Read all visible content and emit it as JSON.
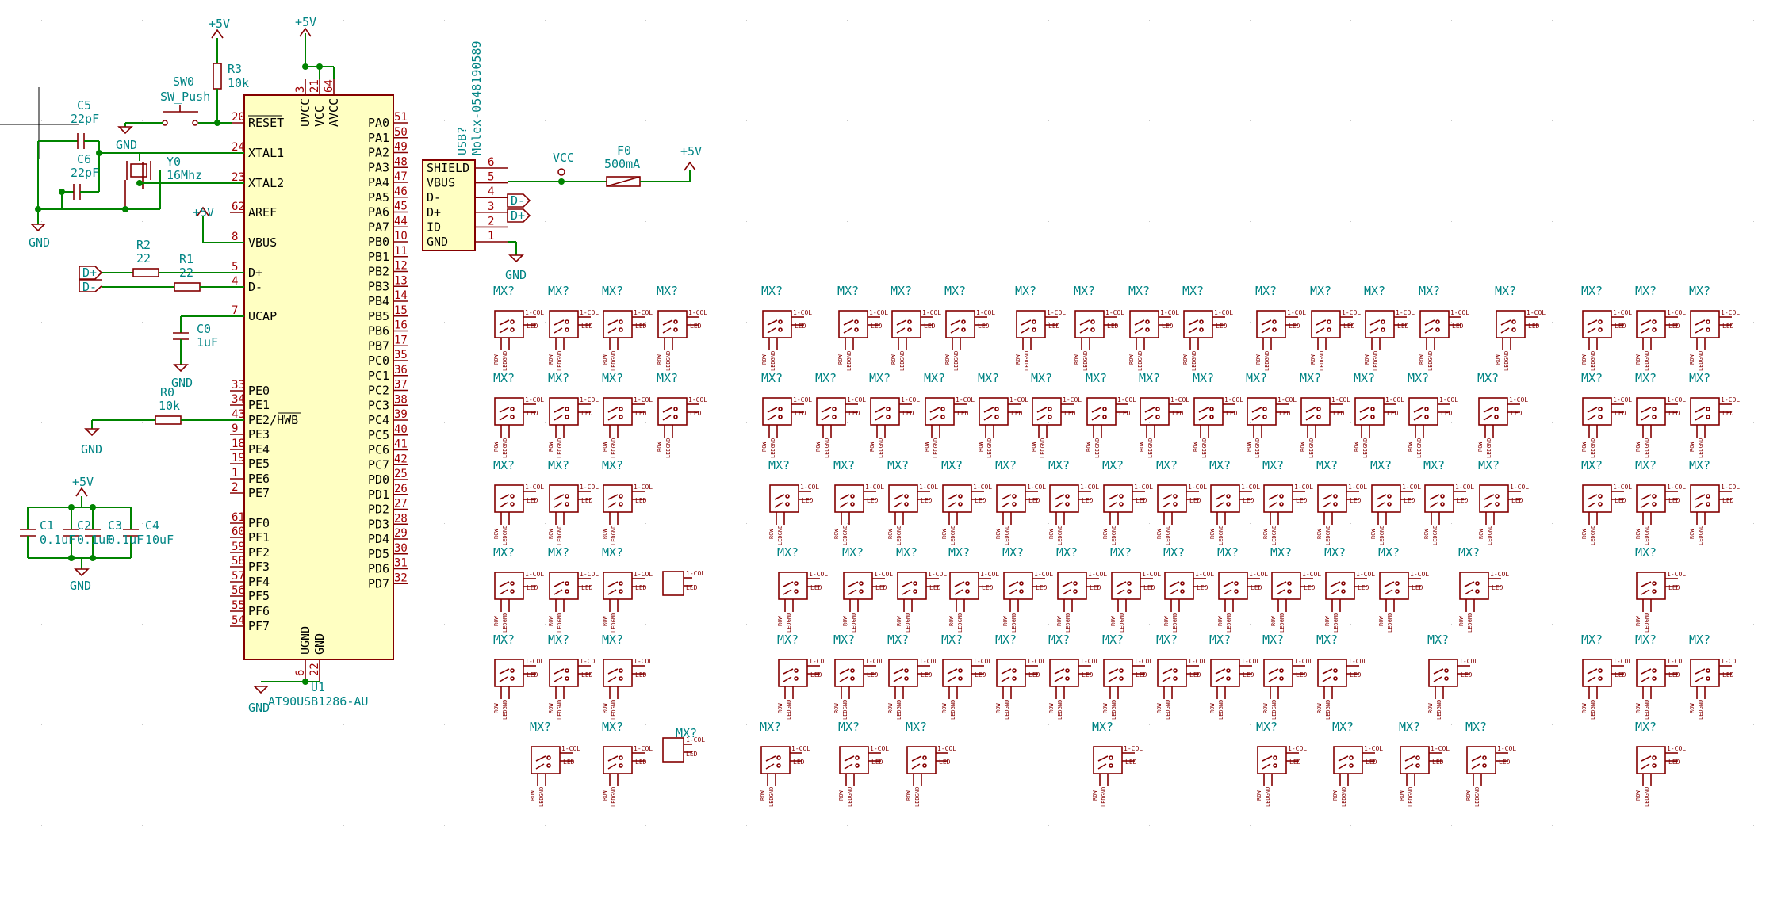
{
  "mcu": {
    "ref": "U1",
    "value": "AT90USB1286-AU",
    "left_pins": [
      {
        "num": "20",
        "name": "RESET"
      },
      {
        "num": "24",
        "name": "XTAL1"
      },
      {
        "num": "23",
        "name": "XTAL2"
      },
      {
        "num": "62",
        "name": "AREF"
      },
      {
        "num": "8",
        "name": "VBUS"
      },
      {
        "num": "5",
        "name": "D+"
      },
      {
        "num": "4",
        "name": "D-"
      },
      {
        "num": "7",
        "name": "UCAP"
      },
      {
        "num": "33",
        "name": "PE0"
      },
      {
        "num": "34",
        "name": "PE1"
      },
      {
        "num": "43",
        "name": "PE2/HWB"
      },
      {
        "num": "9",
        "name": "PE3"
      },
      {
        "num": "18",
        "name": "PE4"
      },
      {
        "num": "19",
        "name": "PE5"
      },
      {
        "num": "1",
        "name": "PE6"
      },
      {
        "num": "2",
        "name": "PE7"
      },
      {
        "num": "61",
        "name": "PF0"
      },
      {
        "num": "60",
        "name": "PF1"
      },
      {
        "num": "59",
        "name": "PF2"
      },
      {
        "num": "58",
        "name": "PF3"
      },
      {
        "num": "57",
        "name": "PF4"
      },
      {
        "num": "56",
        "name": "PF5"
      },
      {
        "num": "55",
        "name": "PF6"
      },
      {
        "num": "54",
        "name": "PF7"
      }
    ],
    "right_pins": [
      {
        "num": "51",
        "name": "PA0"
      },
      {
        "num": "50",
        "name": "PA1"
      },
      {
        "num": "49",
        "name": "PA2"
      },
      {
        "num": "48",
        "name": "PA3"
      },
      {
        "num": "47",
        "name": "PA4"
      },
      {
        "num": "46",
        "name": "PA5"
      },
      {
        "num": "45",
        "name": "PA6"
      },
      {
        "num": "44",
        "name": "PA7"
      },
      {
        "num": "10",
        "name": "PB0"
      },
      {
        "num": "11",
        "name": "PB1"
      },
      {
        "num": "12",
        "name": "PB2"
      },
      {
        "num": "13",
        "name": "PB3"
      },
      {
        "num": "14",
        "name": "PB4"
      },
      {
        "num": "15",
        "name": "PB5"
      },
      {
        "num": "16",
        "name": "PB6"
      },
      {
        "num": "17",
        "name": "PB7"
      },
      {
        "num": "35",
        "name": "PC0"
      },
      {
        "num": "36",
        "name": "PC1"
      },
      {
        "num": "37",
        "name": "PC2"
      },
      {
        "num": "38",
        "name": "PC3"
      },
      {
        "num": "39",
        "name": "PC4"
      },
      {
        "num": "40",
        "name": "PC5"
      },
      {
        "num": "41",
        "name": "PC6"
      },
      {
        "num": "42",
        "name": "PC7"
      },
      {
        "num": "25",
        "name": "PD0"
      },
      {
        "num": "26",
        "name": "PD1"
      },
      {
        "num": "27",
        "name": "PD2"
      },
      {
        "num": "28",
        "name": "PD3"
      },
      {
        "num": "29",
        "name": "PD4"
      },
      {
        "num": "30",
        "name": "PD5"
      },
      {
        "num": "31",
        "name": "PD6"
      },
      {
        "num": "32",
        "name": "PD7"
      }
    ],
    "top_pins": [
      {
        "num": "3",
        "name": "UVCC"
      },
      {
        "num": "21",
        "name": "VCC"
      },
      {
        "num": "64",
        "name": "AVCC"
      }
    ],
    "bottom_pins": [
      {
        "num": "6",
        "name": "UGND"
      },
      {
        "num": "22",
        "name": "GND"
      }
    ]
  },
  "usb": {
    "ref": "USB?",
    "value": "Molex-0548190589",
    "pins": [
      {
        "num": "6",
        "name": "SHIELD"
      },
      {
        "num": "5",
        "name": "VBUS"
      },
      {
        "num": "4",
        "name": "D-"
      },
      {
        "num": "3",
        "name": "D+"
      },
      {
        "num": "2",
        "name": "ID"
      },
      {
        "num": "1",
        "name": "GND"
      }
    ]
  },
  "power": {
    "p5v": "+5V",
    "vcc": "VCC",
    "gnd": "GND"
  },
  "labels": {
    "dplus": "D+",
    "dminus": "D-"
  },
  "parts": {
    "r3": {
      "ref": "R3",
      "value": "10k"
    },
    "sw0": {
      "ref": "SW0",
      "value": "SW_Push"
    },
    "c5": {
      "ref": "C5",
      "value": "22pF"
    },
    "c6": {
      "ref": "C6",
      "value": "22pF"
    },
    "y0": {
      "ref": "Y0",
      "value": "16Mhz"
    },
    "r2": {
      "ref": "R2",
      "value": "22"
    },
    "r1": {
      "ref": "R1",
      "value": "22"
    },
    "c0": {
      "ref": "C0",
      "value": "1uF"
    },
    "r0": {
      "ref": "R0",
      "value": "10k"
    },
    "c1": {
      "ref": "C1",
      "value": "0.1uF"
    },
    "c2": {
      "ref": "C2",
      "value": "0.1uF"
    },
    "c3": {
      "ref": "C3",
      "value": "0.1uF"
    },
    "c4": {
      "ref": "C4",
      "value": "10uF"
    },
    "f0": {
      "ref": "F0",
      "value": "500mA"
    }
  },
  "switch_matrix": {
    "ref": "MX?",
    "pin_col": "1-COL",
    "pin_led": "LED",
    "pin_row": "ROW",
    "pin_ledgnd": "LEDGND",
    "rows": [
      {
        "keys": [
          {
            "x": 642
          },
          {
            "x": 711
          },
          {
            "x": 779
          },
          {
            "x": 848
          },
          {
            "x": 980
          },
          {
            "x": 1076
          },
          {
            "x": 1143
          },
          {
            "x": 1211
          },
          {
            "x": 1300
          },
          {
            "x": 1374
          },
          {
            "x": 1443
          },
          {
            "x": 1511
          },
          {
            "x": 1603
          },
          {
            "x": 1672
          },
          {
            "x": 1740
          },
          {
            "x": 1809
          },
          {
            "x": 1905
          },
          {
            "x": 2014
          },
          {
            "x": 2082
          },
          {
            "x": 2150
          }
        ],
        "y": 422
      },
      {
        "keys": [
          {
            "x": 642
          },
          {
            "x": 711
          },
          {
            "x": 779
          },
          {
            "x": 848
          },
          {
            "x": 980
          },
          {
            "x": 1048
          },
          {
            "x": 1116
          },
          {
            "x": 1185
          },
          {
            "x": 1253
          },
          {
            "x": 1320
          },
          {
            "x": 1389
          },
          {
            "x": 1456
          },
          {
            "x": 1524
          },
          {
            "x": 1591
          },
          {
            "x": 1659
          },
          {
            "x": 1727
          },
          {
            "x": 1795
          },
          {
            "x": 1883
          },
          {
            "x": 2014
          },
          {
            "x": 2082
          },
          {
            "x": 2150
          }
        ],
        "y": 532
      },
      {
        "keys": [
          {
            "x": 642
          },
          {
            "x": 711
          },
          {
            "x": 779
          },
          {
            "x": 989
          },
          {
            "x": 1071
          },
          {
            "x": 1139
          },
          {
            "x": 1207
          },
          {
            "x": 1275
          },
          {
            "x": 1342
          },
          {
            "x": 1410
          },
          {
            "x": 1478
          },
          {
            "x": 1545
          },
          {
            "x": 1612
          },
          {
            "x": 1680
          },
          {
            "x": 1748
          },
          {
            "x": 1815
          },
          {
            "x": 1884
          },
          {
            "x": 2014
          },
          {
            "x": 2082
          },
          {
            "x": 2150
          }
        ],
        "y": 642
      },
      {
        "keys": [
          {
            "x": 642
          },
          {
            "x": 711
          },
          {
            "x": 779
          },
          {
            "x": 1000
          },
          {
            "x": 1082
          },
          {
            "x": 1150
          },
          {
            "x": 1216
          },
          {
            "x": 1284
          },
          {
            "x": 1352
          },
          {
            "x": 1420
          },
          {
            "x": 1487
          },
          {
            "x": 1555
          },
          {
            "x": 1622
          },
          {
            "x": 1690
          },
          {
            "x": 1758
          },
          {
            "x": 1859
          },
          {
            "x": 2082
          }
        ],
        "y": 752
      },
      {
        "keys": [
          {
            "x": 642
          },
          {
            "x": 711
          },
          {
            "x": 779
          },
          {
            "x": 1000
          },
          {
            "x": 1071
          },
          {
            "x": 1139
          },
          {
            "x": 1207
          },
          {
            "x": 1275
          },
          {
            "x": 1342
          },
          {
            "x": 1410
          },
          {
            "x": 1478
          },
          {
            "x": 1545
          },
          {
            "x": 1612
          },
          {
            "x": 1680
          },
          {
            "x": 1820
          },
          {
            "x": 2014
          },
          {
            "x": 2082
          },
          {
            "x": 2150
          }
        ],
        "y": 862
      },
      {
        "keys": [
          {
            "x": 688
          },
          {
            "x": 779
          },
          {
            "x": 978
          },
          {
            "x": 1077
          },
          {
            "x": 1162
          },
          {
            "x": 1397
          },
          {
            "x": 1604
          },
          {
            "x": 1700
          },
          {
            "x": 1784
          },
          {
            "x": 1868
          },
          {
            "x": 2082
          }
        ],
        "y": 972
      }
    ],
    "extra_keys": [
      {
        "x": 843,
        "y": 701
      },
      {
        "x": 843,
        "y": 911
      }
    ]
  }
}
